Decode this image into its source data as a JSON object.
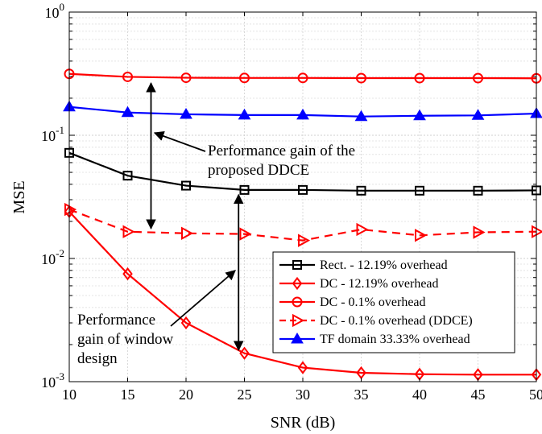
{
  "chart_data": {
    "type": "line",
    "xlabel": "SNR (dB)",
    "ylabel": "MSE",
    "x_ticks": [
      10,
      15,
      20,
      25,
      30,
      35,
      40,
      45,
      50
    ],
    "xlim": [
      10,
      50
    ],
    "ylim": [
      0.001,
      1
    ],
    "y_scale": "log",
    "y_tick_labels": [
      {
        "value": 0.001,
        "base": "10",
        "exp": "-3"
      },
      {
        "value": 0.01,
        "base": "10",
        "exp": "-2"
      },
      {
        "value": 0.1,
        "base": "10",
        "exp": "-1"
      },
      {
        "value": 1,
        "base": "10",
        "exp": "0"
      }
    ],
    "grid": true,
    "legend_position": "bottom-right",
    "x": [
      10,
      15,
      20,
      25,
      30,
      35,
      40,
      45,
      50
    ],
    "series": [
      {
        "name": "Rect. - 12.19% overhead",
        "color": "#000000",
        "marker": "square",
        "dash": false,
        "values": [
          0.072,
          0.047,
          0.039,
          0.036,
          0.036,
          0.0355,
          0.0355,
          0.0355,
          0.0357
        ]
      },
      {
        "name": "DC - 12.19% overhead",
        "color": "#ff0000",
        "marker": "diamond",
        "dash": false,
        "values": [
          0.024,
          0.0075,
          0.003,
          0.0017,
          0.0013,
          0.00118,
          0.00115,
          0.00114,
          0.00114
        ]
      },
      {
        "name": "DC - 0.1% overhead",
        "color": "#ff0000",
        "marker": "circle",
        "dash": false,
        "values": [
          0.315,
          0.298,
          0.293,
          0.292,
          0.292,
          0.291,
          0.291,
          0.291,
          0.29
        ]
      },
      {
        "name": "DC - 0.1% overhead (DDCE)",
        "color": "#ff0000",
        "marker": "triangle-right",
        "dash": true,
        "values": [
          0.025,
          0.0165,
          0.016,
          0.0158,
          0.014,
          0.0172,
          0.0154,
          0.0163,
          0.0165
        ]
      },
      {
        "name": "TF domain 33.33% overhead",
        "color": "#0000ff",
        "marker": "triangle-up",
        "dash": false,
        "values": [
          0.17,
          0.153,
          0.148,
          0.146,
          0.146,
          0.142,
          0.144,
          0.145,
          0.15
        ]
      }
    ],
    "annotations": [
      {
        "lines": [
          "Performance gain of the",
          "proposed DDCE"
        ]
      },
      {
        "lines": [
          "Performance",
          "gain of window",
          "design"
        ]
      }
    ],
    "annotation_arrows": [
      {
        "x": 17,
        "y_from": 0.29,
        "y_to": 0.0165
      },
      {
        "x": 24.5,
        "y_from": 0.036,
        "y_to": 0.0017
      }
    ]
  }
}
